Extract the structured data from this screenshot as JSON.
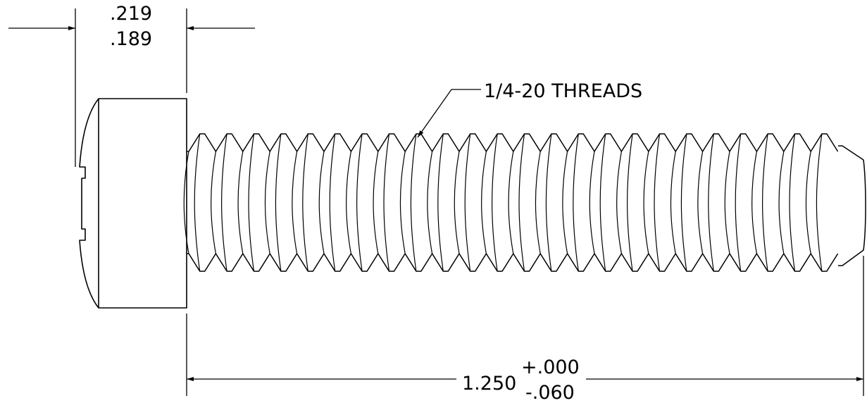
{
  "drawing": {
    "head_height_dim": {
      "upper": ".219",
      "lower": ".189"
    },
    "thread_callout": "1/4-20 THREADS",
    "length_dim": {
      "nominal": "1.250",
      "plus_tol": "+.000",
      "minus_tol": "-.060"
    }
  },
  "colors": {
    "line": "#000000",
    "background": "#ffffff"
  }
}
